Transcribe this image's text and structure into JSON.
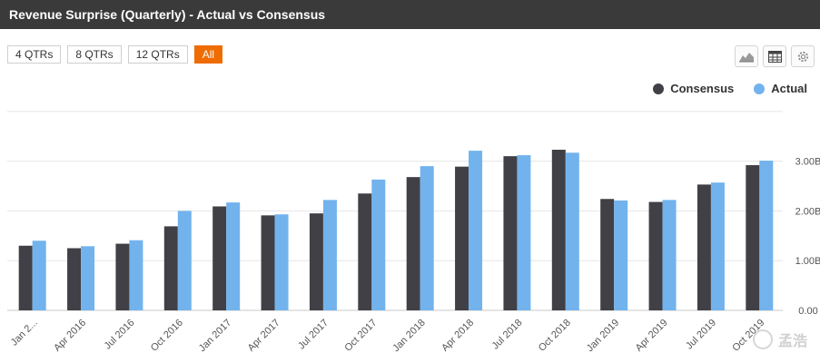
{
  "title": "Revenue Surprise (Quarterly) - Actual vs Consensus",
  "range_buttons": [
    {
      "label": "4 QTRs",
      "active": false
    },
    {
      "label": "8 QTRs",
      "active": false
    },
    {
      "label": "12 QTRs",
      "active": false
    },
    {
      "label": "All",
      "active": true
    }
  ],
  "tools": [
    {
      "name": "area-chart-icon"
    },
    {
      "name": "table-icon"
    },
    {
      "name": "gear-icon"
    }
  ],
  "watermark": "孟浩",
  "colors": {
    "consensus": "#414046",
    "actual": "#72b3ed",
    "active_button": "#ef6c00"
  },
  "chart_data": {
    "type": "bar",
    "title": "",
    "xlabel": "",
    "ylabel": "",
    "categories": [
      "Jan 2...",
      "Apr 2016",
      "Jul 2016",
      "Oct 2016",
      "Jan 2017",
      "Apr 2017",
      "Jul 2017",
      "Oct 2017",
      "Jan 2018",
      "Apr 2018",
      "Jul 2018",
      "Oct 2018",
      "Jan 2019",
      "Apr 2019",
      "Jul 2019",
      "Oct 2019"
    ],
    "series": [
      {
        "name": "Consensus",
        "values": [
          1.3,
          1.25,
          1.34,
          1.69,
          2.09,
          1.91,
          1.95,
          2.35,
          2.68,
          2.89,
          3.1,
          3.23,
          2.24,
          2.18,
          2.53,
          2.92
        ]
      },
      {
        "name": "Actual",
        "values": [
          1.4,
          1.29,
          1.41,
          2.0,
          2.17,
          1.93,
          2.22,
          2.63,
          2.9,
          3.21,
          3.12,
          3.17,
          2.21,
          2.22,
          2.57,
          3.01
        ]
      }
    ],
    "y_ticks": [
      "0.00",
      "1.00B",
      "2.00B",
      "3.00B"
    ],
    "y_tick_values": [
      0,
      1,
      2,
      3
    ],
    "ylim": [
      0,
      4
    ],
    "grid": true,
    "legend": "top-right",
    "y_axis_side": "right"
  }
}
